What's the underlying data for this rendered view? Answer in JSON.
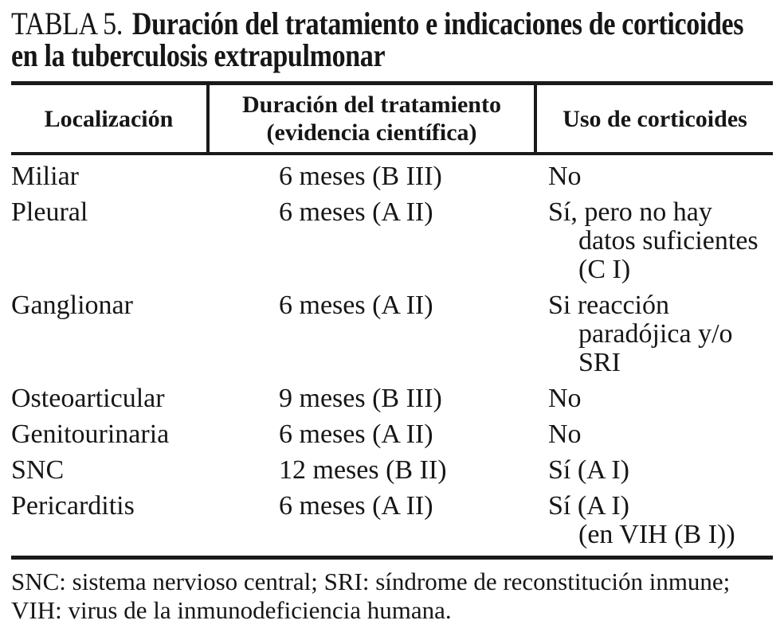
{
  "title": {
    "prefix": "TABLA 5.",
    "text_line1": "Duración del tratamiento e indicaciones de corticoides",
    "text_line2": "en la tuberculosis extrapulmonar"
  },
  "table": {
    "headers": [
      {
        "lines": [
          "Localización"
        ]
      },
      {
        "lines": [
          "Duración del tratamiento",
          "(evidencia científica)"
        ]
      },
      {
        "lines": [
          "Uso de corticoides"
        ]
      }
    ],
    "rows": [
      {
        "location": "Miliar",
        "duration": "6 meses (B III)",
        "corticoids": [
          "No"
        ]
      },
      {
        "location": "Pleural",
        "duration": "6 meses (A II)",
        "corticoids": [
          "Sí, pero no hay",
          "datos suficientes",
          "(C I)"
        ]
      },
      {
        "location": "Ganglionar",
        "duration": "6 meses (A II)",
        "corticoids": [
          "Si reacción",
          "paradójica y/o",
          "SRI"
        ]
      },
      {
        "location": "Osteoarticular",
        "duration": "9 meses (B III)",
        "corticoids": [
          "No"
        ]
      },
      {
        "location": "Genitourinaria",
        "duration": "6 meses (A II)",
        "corticoids": [
          "No"
        ]
      },
      {
        "location": "SNC",
        "duration": "12 meses (B II)",
        "corticoids": [
          "Sí (A I)"
        ]
      },
      {
        "location": "Pericarditis",
        "duration": "6 meses (A II)",
        "corticoids": [
          "Sí (A I)",
          "(en VIH (B I))"
        ]
      }
    ]
  },
  "footnote": {
    "line1": "SNC: sistema nervioso central; SRI: síndrome de reconstitución inmune;",
    "line2": "VIH: virus de la inmunodeficiencia humana."
  },
  "colors": {
    "background": "#ffffff",
    "text": "#161616",
    "rule": "#1a1a1a"
  }
}
